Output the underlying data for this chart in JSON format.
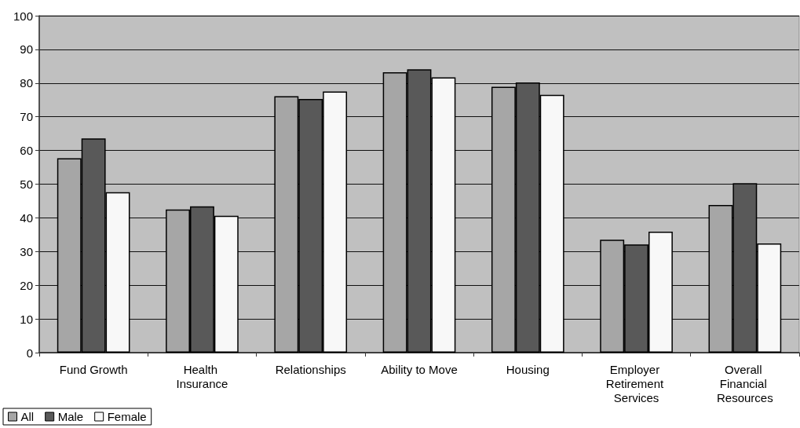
{
  "chart_data": {
    "type": "bar",
    "categories": [
      "Fund Growth",
      "Health Insurance",
      "Relationships",
      "Ability to Move",
      "Housing",
      "Employer Retirement Services",
      "Overall Financial Resources"
    ],
    "series": [
      {
        "name": "All",
        "color": "#a6a6a6",
        "values": [
          57.7,
          42.5,
          76.1,
          83.2,
          78.9,
          33.5,
          43.8
        ]
      },
      {
        "name": "Male",
        "color": "#595959",
        "values": [
          63.6,
          43.4,
          75.3,
          84.1,
          80.2,
          32.1,
          50.3
        ]
      },
      {
        "name": "Female",
        "color": "#f8f8f8",
        "values": [
          47.6,
          40.6,
          77.5,
          81.7,
          76.5,
          35.9,
          32.4
        ]
      }
    ],
    "ylim": [
      0,
      100
    ],
    "yticks": [
      0,
      10,
      20,
      30,
      40,
      50,
      60,
      70,
      80,
      90,
      100
    ],
    "grid": "y",
    "legend": "bottom left"
  }
}
